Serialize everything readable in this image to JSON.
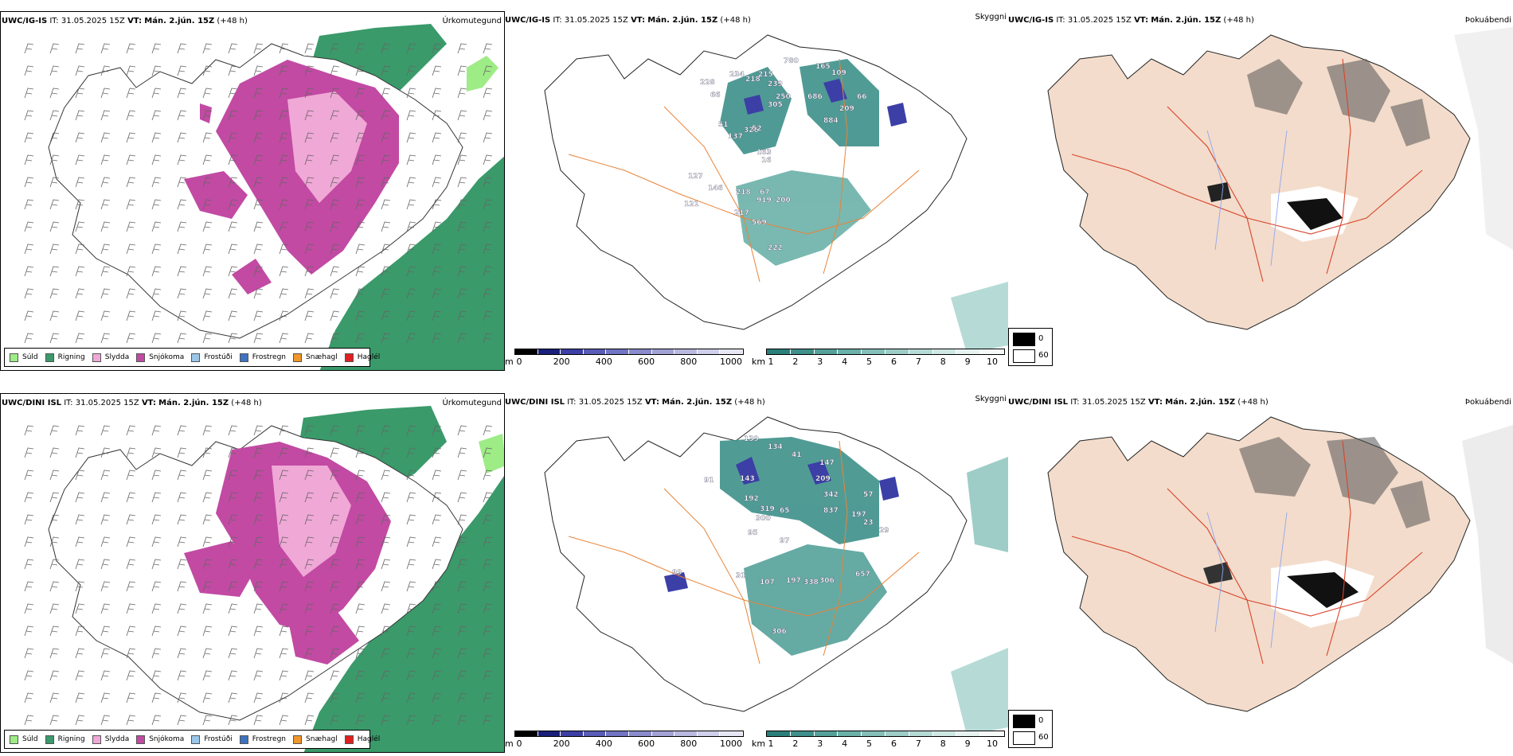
{
  "colors": {
    "sudd": "#9dec86",
    "rigning": "#3a9a6a",
    "slydda": "#f0a8d6",
    "snjokoma": "#c24aa3",
    "frostudi": "#9ac6ea",
    "frostregn": "#3e73c2",
    "snaehagl": "#f0962a",
    "hagl": "#e02020",
    "terrain_ramp": [
      "#000000",
      "#1a1f7a",
      "#3c3fa6",
      "#5a5cb8",
      "#7274c4",
      "#8a8bcc",
      "#a2a2d6",
      "#b9b9e0",
      "#d0d0ea",
      "#e6e6f4"
    ],
    "cloud_ramp": [
      "#2b7f7a",
      "#3e908a",
      "#55a19a",
      "#6bb1a9",
      "#84c0b9",
      "#9ecdc7",
      "#b6dbd6",
      "#cfe8e4",
      "#e6f3f1",
      "#f6fbfa"
    ],
    "land_beige": "#f3dccb",
    "roads": "#e8843a",
    "roads_red": "#d8432a",
    "rivers": "#8ea6f0"
  },
  "rows": [
    {
      "model": "UWC/IG-IS",
      "it_label": "IT:",
      "it_value": "31.05.2025 15Z",
      "vt_label": "VT:",
      "vt_value": "Mán. 2.jún. 15Z",
      "lead": "(+48 h)",
      "panel1_title": "Úrkomutegund",
      "panel2_title": "Skyggni",
      "panel3_title": "Þokuábendi",
      "visibility_labels": [
        "780",
        "228",
        "66",
        "234",
        "218",
        "215",
        "239",
        "250",
        "165",
        "109",
        "686",
        "305",
        "884",
        "209",
        "66",
        "51",
        "137",
        "326",
        "52",
        "163",
        "16",
        "146",
        "127",
        "121",
        "218",
        "67",
        "217",
        "919",
        "200",
        "569",
        "222"
      ]
    },
    {
      "model": "UWC/DINI ISL",
      "it_label": "IT:",
      "it_value": "31.05.2025 15Z",
      "vt_label": "VT:",
      "vt_value": "Mán. 2.jún. 15Z",
      "lead": "(+48 h)",
      "panel1_title": "Úrkomutegund",
      "panel2_title": "Skyggni",
      "panel3_title": "Þokuábendi",
      "visibility_labels": [
        "139",
        "134",
        "41",
        "91",
        "143",
        "147",
        "209",
        "342",
        "57",
        "192",
        "319",
        "300",
        "65",
        "837",
        "197",
        "23",
        "29",
        "95",
        "97",
        "99",
        "31",
        "107",
        "197",
        "338",
        "306",
        "657",
        "306"
      ]
    }
  ],
  "precip_legend": [
    {
      "label": "Súld",
      "color_key": "sudd"
    },
    {
      "label": "Rigning",
      "color_key": "rigning"
    },
    {
      "label": "Slydda",
      "color_key": "slydda"
    },
    {
      "label": "Snjókoma",
      "color_key": "snjokoma"
    },
    {
      "label": "Frostúði",
      "color_key": "frostudi"
    },
    {
      "label": "Frostregn",
      "color_key": "frostregn"
    },
    {
      "label": "Snæhagl",
      "color_key": "snaehagl"
    },
    {
      "label": "Haglél",
      "color_key": "hagl"
    }
  ],
  "terrain_bar": {
    "unit": "m",
    "ticks": [
      "0",
      "200",
      "400",
      "600",
      "800",
      "1000"
    ]
  },
  "cloud_bar": {
    "unit": "km",
    "ticks": [
      "1",
      "2",
      "3",
      "4",
      "5",
      "6",
      "7",
      "8",
      "9",
      "10"
    ]
  },
  "fog_legend": {
    "values": [
      "0",
      "60"
    ]
  }
}
